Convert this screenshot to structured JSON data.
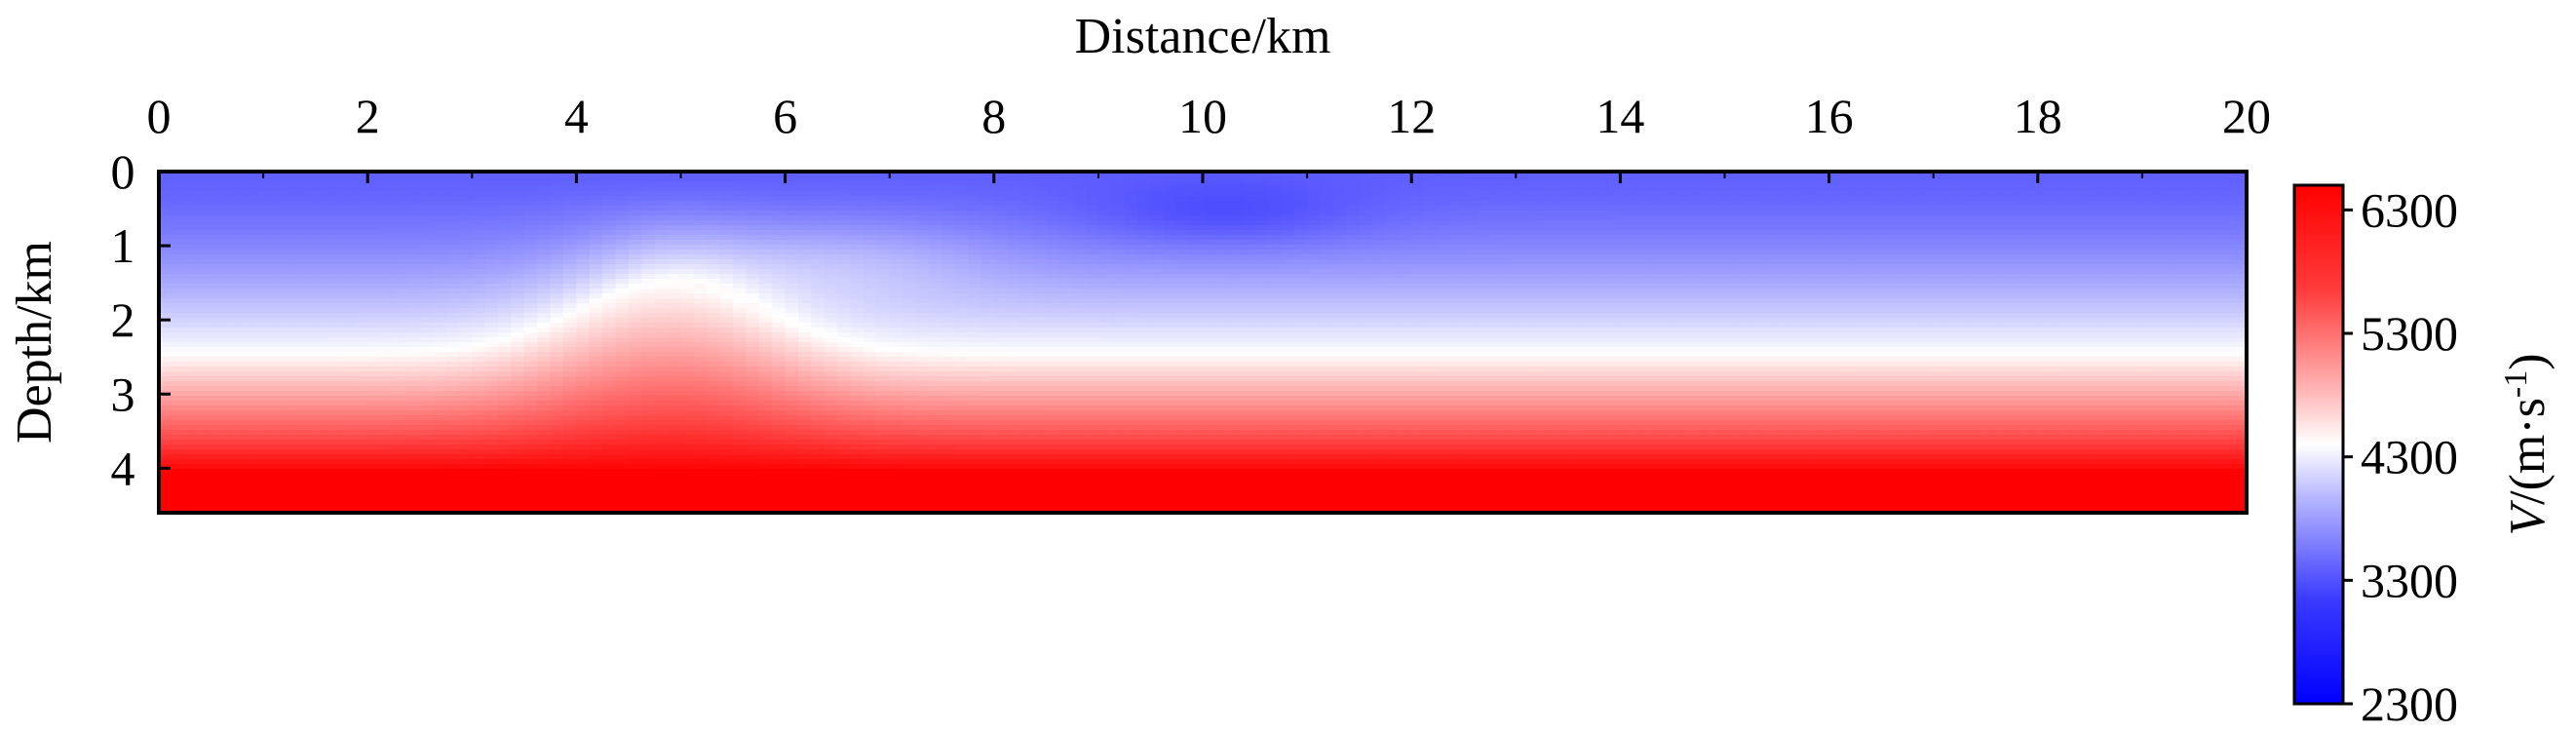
{
  "chart_data": {
    "type": "heatmap",
    "xlabel": "Distance/km",
    "ylabel": "Depth/km",
    "colorbar_label_italic": "V",
    "colorbar_label_rest": "/(m·s",
    "colorbar_label_sup": "-1",
    "colorbar_label_close": ")",
    "x_axis_position": "top",
    "xlim": [
      0,
      20
    ],
    "ylim": [
      4.6,
      0
    ],
    "x_ticks": [
      0,
      2,
      4,
      6,
      8,
      10,
      12,
      14,
      16,
      18,
      20
    ],
    "y_ticks": [
      0,
      1,
      2,
      3,
      4
    ],
    "colorbar_ticks": [
      2300,
      3300,
      4300,
      5300,
      6300
    ],
    "colorbar_range": [
      2300,
      6500
    ],
    "colormap": "bwr",
    "colormap_stops": [
      "#0000ff",
      "#ffffff",
      "#ff0000"
    ],
    "velocity_model_description": "Layered velocity model with low-velocity (blue) near-surface layers, a white ~4300 m/s interface near 2.3-2.5 km depth that rises to ~1.5 km around x=4-5 km (anticline), and high-velocity (red) layers below reaching ~6500 m/s at depth >4 km."
  }
}
